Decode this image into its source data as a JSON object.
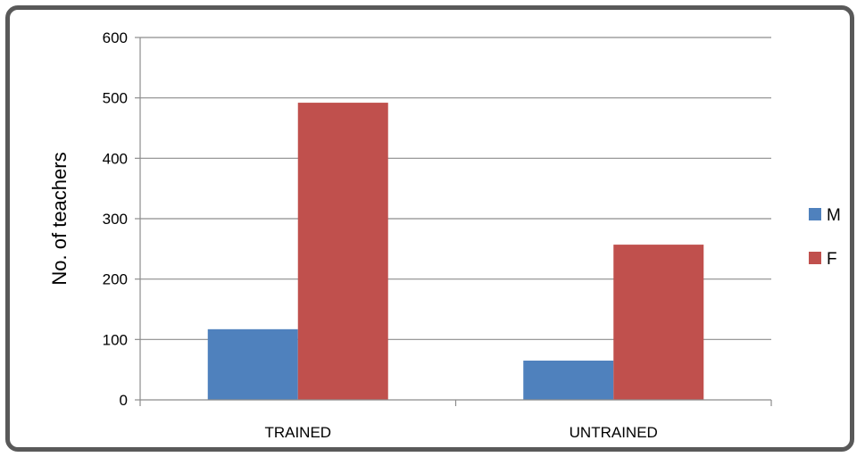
{
  "chart_data": {
    "type": "bar",
    "title": "",
    "xlabel": "",
    "ylabel": "No. of teachers",
    "ylim": [
      0,
      600
    ],
    "yticks": [
      0,
      100,
      200,
      300,
      400,
      500,
      600
    ],
    "grid": true,
    "legend_position": "right",
    "categories": [
      "TRAINED",
      "UNTRAINED"
    ],
    "series": [
      {
        "name": "M",
        "color": "#4F81BD",
        "values": [
          117,
          65
        ]
      },
      {
        "name": "F",
        "color": "#C0504D",
        "values": [
          492,
          257
        ]
      }
    ]
  }
}
